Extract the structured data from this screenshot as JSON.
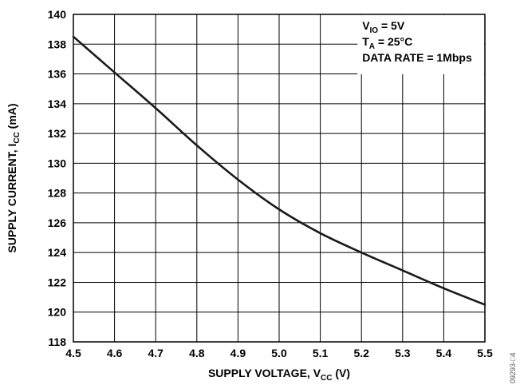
{
  "chart_data": {
    "type": "line",
    "xlabel_main": "SUPPLY VOLTAGE, V",
    "xlabel_sub": "CC",
    "xlabel_tail": " (V)",
    "ylabel_main": "SUPPLY CURRENT, I",
    "ylabel_sub": "CC",
    "ylabel_tail": " (mA)",
    "xlim": [
      4.5,
      5.5
    ],
    "ylim": [
      118,
      140
    ],
    "x_ticks": [
      4.5,
      4.6,
      4.7,
      4.8,
      4.9,
      5.0,
      5.1,
      5.2,
      5.3,
      5.4,
      5.5
    ],
    "x_tick_labels": [
      "4.5",
      "4.6",
      "4.7",
      "4.8",
      "4.9",
      "5.0",
      "5.1",
      "5.2",
      "5.3",
      "5.4",
      "5.5"
    ],
    "y_ticks": [
      118,
      120,
      122,
      124,
      126,
      128,
      130,
      132,
      134,
      136,
      138,
      140
    ],
    "y_tick_labels": [
      "118",
      "120",
      "122",
      "124",
      "126",
      "128",
      "130",
      "132",
      "134",
      "136",
      "138",
      "140"
    ],
    "grid": true,
    "conditions": [
      {
        "main": "V",
        "sub": "IO",
        "tail": " = 5V"
      },
      {
        "main": "T",
        "sub": "A",
        "tail": " = 25°C"
      },
      {
        "main": "DATA RATE = 1Mbps",
        "sub": "",
        "tail": ""
      }
    ],
    "legend_position": "top-right",
    "ref_code": "09293-□4",
    "series": [
      {
        "x": [
          4.5,
          4.6,
          4.7,
          4.8,
          4.9,
          5.0,
          5.1,
          5.2,
          5.3,
          5.4,
          5.5
        ],
        "y": [
          138.5,
          136.1,
          133.7,
          131.2,
          128.9,
          126.9,
          125.3,
          124.0,
          122.8,
          121.6,
          120.5
        ]
      }
    ],
    "line_color": "#1a1a1a"
  }
}
